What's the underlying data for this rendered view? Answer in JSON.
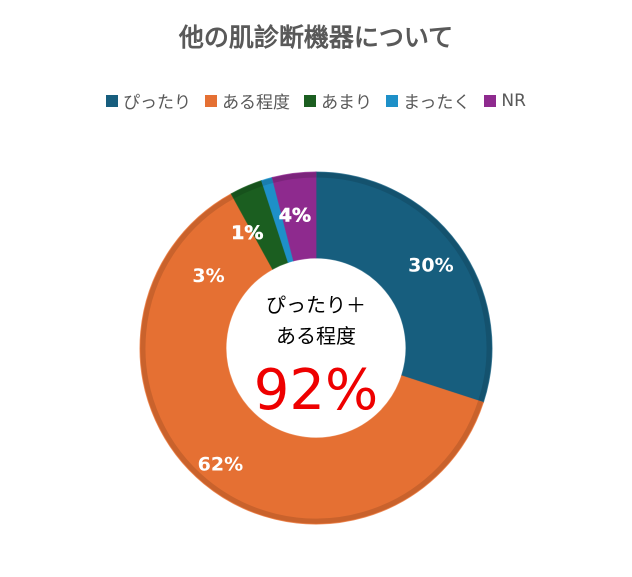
{
  "chart_data": {
    "type": "donut",
    "title": "他の肌診断機器について",
    "categories": [
      "ぴったり",
      "ある程度",
      "あまり",
      "まったく",
      "NR"
    ],
    "values": [
      30,
      62,
      3,
      1,
      4
    ],
    "data_labels": [
      "30%",
      "62%",
      "3%",
      "1%",
      "4%"
    ],
    "colors": [
      "#175e7e",
      "#e57033",
      "#1b5e20",
      "#1e90c8",
      "#8e2a8e"
    ],
    "legend_position": "top",
    "center_text": {
      "line1": "ぴったり＋",
      "line2": "ある程度",
      "value": "92%",
      "value_color": "#ee0000"
    }
  }
}
